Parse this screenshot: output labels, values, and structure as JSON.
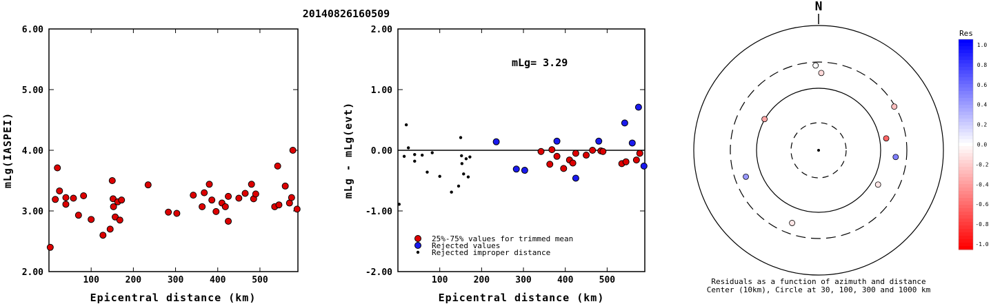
{
  "title": "20140826160509",
  "colors": {
    "red": "#dd0000",
    "blue": "#1a1aee"
  },
  "chart_data": [
    {
      "type": "scatter",
      "xlabel": "Epicentral distance (km)",
      "ylabel": "mLg(IASPEI)",
      "xlim": [
        0,
        590
      ],
      "ylim": [
        2.0,
        6.0
      ],
      "x_ticks": [
        "100",
        "200",
        "300",
        "400",
        "500"
      ],
      "y_ticks": [
        "2.00",
        "3.00",
        "4.00",
        "5.00",
        "6.00"
      ],
      "points": [
        [
          3,
          2.4
        ],
        [
          15,
          3.19
        ],
        [
          20,
          3.71
        ],
        [
          25,
          3.33
        ],
        [
          40,
          3.22
        ],
        [
          40,
          3.11
        ],
        [
          58,
          3.21
        ],
        [
          70,
          2.93
        ],
        [
          82,
          3.25
        ],
        [
          100,
          2.86
        ],
        [
          128,
          2.6
        ],
        [
          145,
          2.7
        ],
        [
          150,
          3.5
        ],
        [
          152,
          3.2
        ],
        [
          153,
          3.07
        ],
        [
          157,
          2.9
        ],
        [
          163,
          3.15
        ],
        [
          168,
          2.85
        ],
        [
          172,
          3.18
        ],
        [
          235,
          3.43
        ],
        [
          283,
          2.98
        ],
        [
          303,
          2.96
        ],
        [
          342,
          3.26
        ],
        [
          363,
          3.07
        ],
        [
          368,
          3.3
        ],
        [
          380,
          3.44
        ],
        [
          386,
          3.18
        ],
        [
          396,
          2.99
        ],
        [
          410,
          3.13
        ],
        [
          418,
          3.07
        ],
        [
          425,
          2.83
        ],
        [
          425,
          3.24
        ],
        [
          450,
          3.21
        ],
        [
          465,
          3.29
        ],
        [
          480,
          3.44
        ],
        [
          485,
          3.2
        ],
        [
          490,
          3.28
        ],
        [
          535,
          3.07
        ],
        [
          542,
          3.74
        ],
        [
          545,
          3.1
        ],
        [
          560,
          3.41
        ],
        [
          570,
          3.13
        ],
        [
          575,
          3.22
        ],
        [
          578,
          4.0
        ],
        [
          588,
          3.03
        ]
      ]
    },
    {
      "type": "scatter",
      "xlabel": "Epicentral distance (km)",
      "ylabel": "mLg - mLg(evt)",
      "xlim": [
        0,
        590
      ],
      "ylim": [
        -2.0,
        2.0
      ],
      "x_ticks": [
        "100",
        "200",
        "300",
        "400",
        "500"
      ],
      "y_ticks": [
        "-2.00",
        "-1.00",
        "0.00",
        "1.00",
        "2.00"
      ],
      "annotation": "mLg= 3.29",
      "legend": [
        "25%-75% values for trimmed mean",
        "Rejected values",
        "Rejected improper distance"
      ],
      "series": [
        {
          "color": "red",
          "points": [
            [
              342,
              -0.02
            ],
            [
              363,
              -0.23
            ],
            [
              368,
              0.01
            ],
            [
              380,
              -0.1
            ],
            [
              396,
              -0.3
            ],
            [
              410,
              -0.16
            ],
            [
              418,
              -0.21
            ],
            [
              425,
              -0.05
            ],
            [
              450,
              -0.08
            ],
            [
              465,
              0.0
            ],
            [
              485,
              -0.01
            ],
            [
              490,
              -0.02
            ],
            [
              535,
              -0.22
            ],
            [
              545,
              -0.19
            ],
            [
              570,
              -0.16
            ],
            [
              578,
              -0.05
            ]
          ]
        },
        {
          "color": "blue",
          "points": [
            [
              235,
              0.14
            ],
            [
              283,
              -0.31
            ],
            [
              303,
              -0.33
            ],
            [
              380,
              0.15
            ],
            [
              425,
              -0.46
            ],
            [
              480,
              0.15
            ],
            [
              542,
              0.45
            ],
            [
              560,
              0.12
            ],
            [
              575,
              0.71
            ],
            [
              588,
              -0.26
            ]
          ]
        },
        {
          "color": "black",
          "points": [
            [
              3,
              -0.89
            ],
            [
              15,
              -0.1
            ],
            [
              20,
              0.42
            ],
            [
              25,
              0.04
            ],
            [
              40,
              -0.07
            ],
            [
              40,
              -0.18
            ],
            [
              58,
              -0.08
            ],
            [
              70,
              -0.36
            ],
            [
              82,
              -0.04
            ],
            [
              100,
              -0.43
            ],
            [
              128,
              -0.69
            ],
            [
              145,
              -0.59
            ],
            [
              150,
              0.21
            ],
            [
              152,
              -0.09
            ],
            [
              153,
              -0.22
            ],
            [
              157,
              -0.39
            ],
            [
              163,
              -0.14
            ],
            [
              168,
              -0.44
            ],
            [
              172,
              -0.11
            ]
          ]
        }
      ]
    },
    {
      "type": "scatter",
      "subtype": "polar",
      "north_label": "N",
      "caption": [
        "Residuals as a function of azimuth and distance",
        "Center (10km), Circle at 30, 100, 300 and 1000 km"
      ],
      "colorbar_title": "Res",
      "colorbar_ticks": [
        "1.0",
        "0.8",
        "0.6",
        "0.4",
        "0.2",
        "0.0",
        "-0.2",
        "-0.4",
        "-0.6",
        "-0.8",
        "-1.0"
      ],
      "rings_km": [
        30,
        100,
        300,
        1000
      ],
      "stations": [
        {
          "az": 358,
          "r": 0.68,
          "res": 0.0
        },
        {
          "az": 2,
          "r": 0.62,
          "res": -0.15
        },
        {
          "az": 60,
          "r": 0.7,
          "res": -0.25
        },
        {
          "az": 80,
          "r": 0.55,
          "res": -0.6
        },
        {
          "az": 95,
          "r": 0.62,
          "res": 0.5
        },
        {
          "az": 120,
          "r": 0.55,
          "res": -0.1
        },
        {
          "az": 200,
          "r": 0.62,
          "res": -0.1
        },
        {
          "az": 250,
          "r": 0.62,
          "res": 0.4
        },
        {
          "az": 300,
          "r": 0.5,
          "res": -0.35
        }
      ]
    }
  ]
}
